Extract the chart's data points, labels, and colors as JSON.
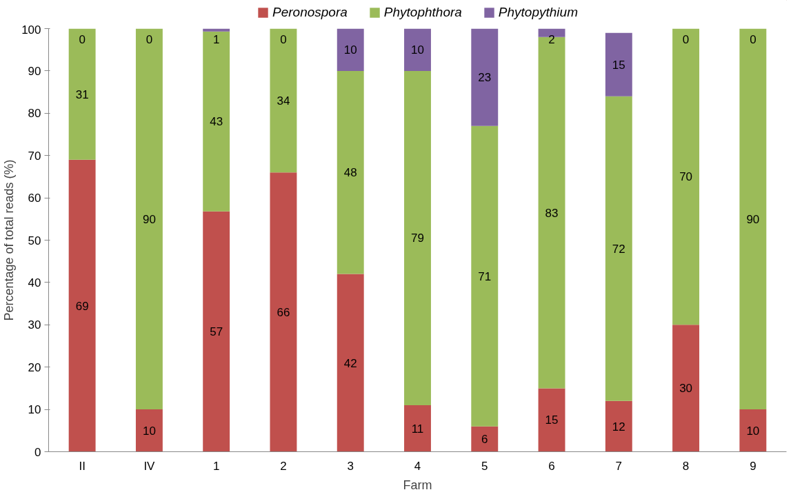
{
  "chart_data": {
    "type": "bar",
    "stacked": true,
    "xlabel": "Farm",
    "ylabel": "Percentage of total reads (%)",
    "categories": [
      "II",
      "IV",
      "1",
      "2",
      "3",
      "4",
      "5",
      "6",
      "7",
      "8",
      "9"
    ],
    "series": [
      {
        "name": "Peronospora",
        "color": "#c0504d",
        "values": [
          69,
          10,
          56.8,
          66,
          42,
          11,
          6,
          15,
          12,
          30,
          10
        ],
        "value_labels": [
          "69",
          "10",
          "57",
          "66",
          "42",
          "11",
          "6",
          "15",
          "12",
          "30",
          "10"
        ]
      },
      {
        "name": "Phytophthora",
        "color": "#9bbb59",
        "values": [
          31,
          90,
          42.5,
          34,
          48,
          79,
          71,
          83,
          72,
          70,
          90
        ],
        "value_labels": [
          "31",
          "90",
          "43",
          "34",
          "48",
          "79",
          "71",
          "83",
          "72",
          "70",
          "90"
        ]
      },
      {
        "name": "Phytopythium",
        "color": "#8064a2",
        "values": [
          0,
          0,
          0.7,
          0,
          10,
          10,
          23,
          2,
          15,
          0,
          0
        ],
        "value_labels": [
          "0",
          "0",
          "1",
          "0",
          "10",
          "10",
          "23",
          "2",
          "15",
          "0",
          "0"
        ]
      }
    ],
    "ylim": [
      0,
      100
    ],
    "yticks": [
      0,
      10,
      20,
      30,
      40,
      50,
      60,
      70,
      80,
      90,
      100
    ],
    "grid": false,
    "legend": "top"
  }
}
